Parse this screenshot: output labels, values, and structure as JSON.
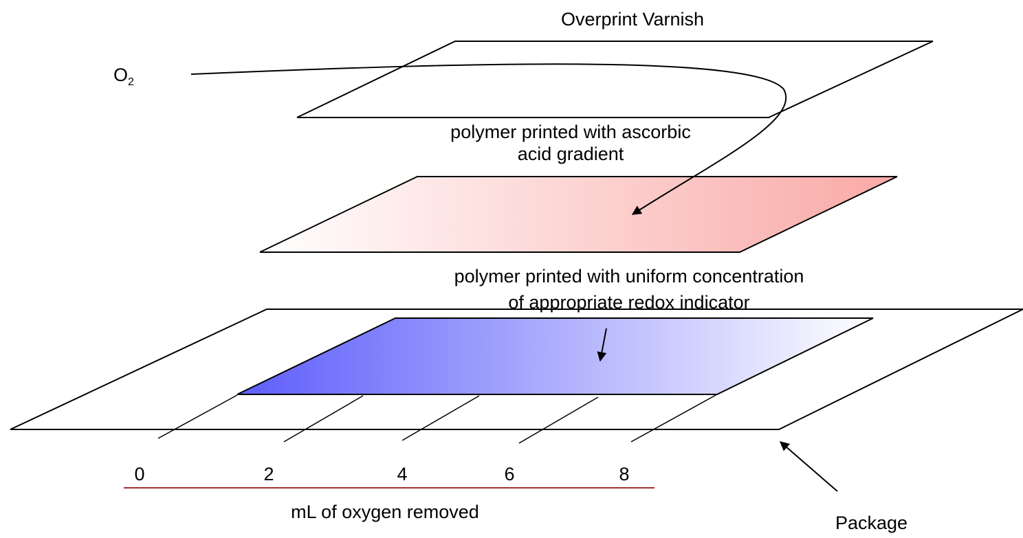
{
  "labels": {
    "top_layer": "Overprint Varnish",
    "oxygen": {
      "symbol": "O",
      "subscript": "2"
    },
    "middle_layer": [
      "polymer printed with ascorbic",
      "acid gradient"
    ],
    "bottom_layer": [
      "polymer printed with uniform concentration",
      "of appropriate redox indicator"
    ],
    "scale": [
      "0",
      "2",
      "4",
      "6",
      "8"
    ],
    "scale_title": "mL of oxygen removed",
    "package": "Package"
  }
}
